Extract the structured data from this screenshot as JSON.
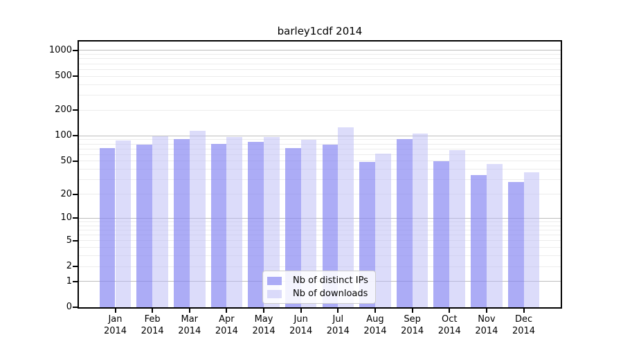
{
  "figure": {
    "title": "barley1cdf 2014"
  },
  "colors": {
    "background": "#ffffff",
    "axis": "#000000",
    "grid_major": "#bdbdbd",
    "grid_minor": "#ececec",
    "legend_border": "#cccccc",
    "legend_background": "rgba(255,255,255,0.85)",
    "bar_distinct_ips": "rgba(133,133,242,0.68)",
    "bar_downloads": "rgba(186,186,246,0.5)"
  },
  "chart_data": {
    "type": "bar",
    "title": "barley1cdf 2014",
    "scale": "log1p",
    "xlabel": "",
    "ylabel": "",
    "categories": [
      "Jan",
      "Feb",
      "Mar",
      "Apr",
      "May",
      "Jun",
      "Jul",
      "Aug",
      "Sep",
      "Oct",
      "Nov",
      "Dec"
    ],
    "category_year": "2014",
    "series": [
      {
        "name": "Nb of distinct IPs",
        "color": "rgba(133,133,242,0.68)",
        "values": [
          72,
          78,
          92,
          80,
          85,
          71,
          78,
          49,
          91,
          50,
          34,
          28
        ]
      },
      {
        "name": "Nb of downloads",
        "color": "rgba(186,186,246,0.5)",
        "values": [
          88,
          98,
          115,
          96,
          97,
          89,
          125,
          62,
          107,
          67,
          46,
          37
        ]
      }
    ],
    "y_ticks": [
      0,
      1,
      2,
      5,
      10,
      20,
      50,
      100,
      200,
      500,
      1000
    ],
    "ylim": [
      0,
      1250
    ],
    "grid": true,
    "gridlines": {
      "major": [
        1,
        10,
        100,
        1000
      ],
      "minor": [
        2,
        3,
        4,
        5,
        6,
        7,
        8,
        9,
        20,
        30,
        40,
        50,
        60,
        70,
        80,
        90,
        200,
        300,
        400,
        500,
        600,
        700,
        800,
        900
      ]
    },
    "legend_position": "bottom-center"
  }
}
